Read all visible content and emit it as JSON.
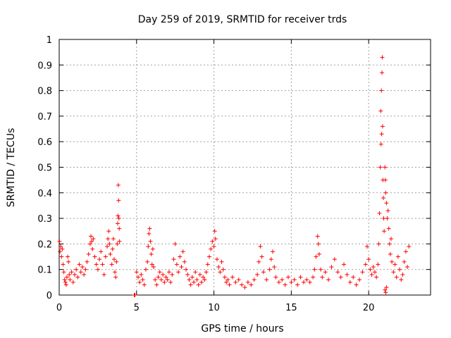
{
  "chart_data": {
    "type": "scatter",
    "title": "Day 259 of 2019, SRMTID for receiver trds",
    "xlabel": "GPS time / hours",
    "ylabel": "SRMTID / TECUs",
    "xlim": [
      0,
      24
    ],
    "ylim": [
      0,
      1
    ],
    "xticks": [
      0,
      5,
      10,
      15,
      20
    ],
    "xtick_labels": [
      "0",
      "5",
      "10",
      "15",
      "20"
    ],
    "yticks": [
      0,
      0.1,
      0.2,
      0.3,
      0.4,
      0.5,
      0.6,
      0.7,
      0.8,
      0.9,
      1
    ],
    "ytick_labels": [
      "0",
      "0.1",
      "0.2",
      "0.3",
      "0.4",
      "0.5",
      "0.6",
      "0.7",
      "0.8",
      "0.9",
      "1"
    ],
    "grid": true,
    "marker": "plus",
    "color": "#ff0000",
    "series": [
      {
        "name": "SRMTID",
        "points": [
          [
            0.02,
            0.21
          ],
          [
            0.05,
            0.17
          ],
          [
            0.1,
            0.19
          ],
          [
            0.15,
            0.15
          ],
          [
            0.2,
            0.18
          ],
          [
            0.25,
            0.12
          ],
          [
            0.3,
            0.09
          ],
          [
            0.35,
            0.06
          ],
          [
            0.4,
            0.05
          ],
          [
            0.45,
            0.04
          ],
          [
            0.5,
            0.07
          ],
          [
            0.55,
            0.15
          ],
          [
            0.6,
            0.13
          ],
          [
            0.65,
            0.08
          ],
          [
            0.7,
            0.06
          ],
          [
            0.8,
            0.09
          ],
          [
            0.9,
            0.05
          ],
          [
            1.0,
            0.08
          ],
          [
            1.1,
            0.1
          ],
          [
            1.2,
            0.07
          ],
          [
            1.3,
            0.12
          ],
          [
            1.4,
            0.09
          ],
          [
            1.5,
            0.11
          ],
          [
            1.6,
            0.08
          ],
          [
            1.7,
            0.1
          ],
          [
            1.8,
            0.13
          ],
          [
            1.9,
            0.16
          ],
          [
            2.0,
            0.2
          ],
          [
            2.05,
            0.23
          ],
          [
            2.1,
            0.21
          ],
          [
            2.15,
            0.18
          ],
          [
            2.2,
            0.22
          ],
          [
            2.3,
            0.15
          ],
          [
            2.4,
            0.12
          ],
          [
            2.5,
            0.1
          ],
          [
            2.6,
            0.14
          ],
          [
            2.7,
            0.17
          ],
          [
            2.8,
            0.12
          ],
          [
            2.9,
            0.08
          ],
          [
            3.0,
            0.15
          ],
          [
            3.1,
            0.19
          ],
          [
            3.15,
            0.22
          ],
          [
            3.2,
            0.25
          ],
          [
            3.25,
            0.2
          ],
          [
            3.3,
            0.16
          ],
          [
            3.4,
            0.12
          ],
          [
            3.45,
            0.18
          ],
          [
            3.5,
            0.22
          ],
          [
            3.55,
            0.14
          ],
          [
            3.6,
            0.09
          ],
          [
            3.65,
            0.07
          ],
          [
            3.7,
            0.13
          ],
          [
            3.75,
            0.2
          ],
          [
            3.78,
            0.28
          ],
          [
            3.8,
            0.31
          ],
          [
            3.82,
            0.43
          ],
          [
            3.84,
            0.37
          ],
          [
            3.86,
            0.3
          ],
          [
            3.88,
            0.26
          ],
          [
            3.9,
            0.21
          ],
          [
            4.85,
            0.0
          ],
          [
            4.9,
            0.0
          ],
          [
            5.0,
            0.09
          ],
          [
            5.1,
            0.07
          ],
          [
            5.2,
            0.05
          ],
          [
            5.3,
            0.08
          ],
          [
            5.4,
            0.06
          ],
          [
            5.5,
            0.04
          ],
          [
            5.6,
            0.1
          ],
          [
            5.7,
            0.13
          ],
          [
            5.75,
            0.19
          ],
          [
            5.8,
            0.24
          ],
          [
            5.85,
            0.26
          ],
          [
            5.9,
            0.21
          ],
          [
            5.95,
            0.16
          ],
          [
            6.0,
            0.12
          ],
          [
            6.05,
            0.18
          ],
          [
            6.1,
            0.11
          ],
          [
            6.2,
            0.06
          ],
          [
            6.3,
            0.04
          ],
          [
            6.4,
            0.07
          ],
          [
            6.5,
            0.09
          ],
          [
            6.6,
            0.06
          ],
          [
            6.7,
            0.08
          ],
          [
            6.8,
            0.05
          ],
          [
            6.9,
            0.07
          ],
          [
            7.0,
            0.06
          ],
          [
            7.1,
            0.09
          ],
          [
            7.2,
            0.05
          ],
          [
            7.3,
            0.08
          ],
          [
            7.4,
            0.14
          ],
          [
            7.5,
            0.2
          ],
          [
            7.6,
            0.12
          ],
          [
            7.7,
            0.09
          ],
          [
            7.8,
            0.15
          ],
          [
            7.9,
            0.11
          ],
          [
            8.0,
            0.17
          ],
          [
            8.1,
            0.13
          ],
          [
            8.2,
            0.1
          ],
          [
            8.3,
            0.08
          ],
          [
            8.4,
            0.06
          ],
          [
            8.5,
            0.04
          ],
          [
            8.6,
            0.07
          ],
          [
            8.7,
            0.05
          ],
          [
            8.8,
            0.09
          ],
          [
            8.9,
            0.06
          ],
          [
            9.0,
            0.04
          ],
          [
            9.1,
            0.08
          ],
          [
            9.2,
            0.05
          ],
          [
            9.3,
            0.07
          ],
          [
            9.4,
            0.06
          ],
          [
            9.5,
            0.09
          ],
          [
            9.6,
            0.12
          ],
          [
            9.7,
            0.15
          ],
          [
            9.8,
            0.18
          ],
          [
            9.9,
            0.21
          ],
          [
            10.0,
            0.19
          ],
          [
            10.05,
            0.25
          ],
          [
            10.1,
            0.22
          ],
          [
            10.2,
            0.14
          ],
          [
            10.3,
            0.11
          ],
          [
            10.4,
            0.09
          ],
          [
            10.5,
            0.13
          ],
          [
            10.6,
            0.1
          ],
          [
            10.7,
            0.07
          ],
          [
            10.8,
            0.05
          ],
          [
            10.9,
            0.06
          ],
          [
            11.0,
            0.04
          ],
          [
            11.2,
            0.07
          ],
          [
            11.4,
            0.05
          ],
          [
            11.6,
            0.06
          ],
          [
            11.8,
            0.04
          ],
          [
            12.0,
            0.03
          ],
          [
            12.2,
            0.05
          ],
          [
            12.4,
            0.04
          ],
          [
            12.6,
            0.06
          ],
          [
            12.8,
            0.08
          ],
          [
            12.9,
            0.13
          ],
          [
            13.0,
            0.19
          ],
          [
            13.1,
            0.15
          ],
          [
            13.2,
            0.09
          ],
          [
            13.4,
            0.06
          ],
          [
            13.6,
            0.1
          ],
          [
            13.7,
            0.14
          ],
          [
            13.8,
            0.17
          ],
          [
            13.9,
            0.11
          ],
          [
            14.0,
            0.07
          ],
          [
            14.2,
            0.05
          ],
          [
            14.4,
            0.06
          ],
          [
            14.6,
            0.04
          ],
          [
            14.8,
            0.07
          ],
          [
            15.0,
            0.05
          ],
          [
            15.2,
            0.06
          ],
          [
            15.4,
            0.04
          ],
          [
            15.6,
            0.07
          ],
          [
            15.8,
            0.05
          ],
          [
            16.0,
            0.06
          ],
          [
            16.2,
            0.05
          ],
          [
            16.4,
            0.07
          ],
          [
            16.5,
            0.1
          ],
          [
            16.6,
            0.15
          ],
          [
            16.7,
            0.23
          ],
          [
            16.75,
            0.2
          ],
          [
            16.8,
            0.16
          ],
          [
            16.9,
            0.1
          ],
          [
            17.0,
            0.07
          ],
          [
            17.2,
            0.09
          ],
          [
            17.4,
            0.06
          ],
          [
            17.6,
            0.11
          ],
          [
            17.8,
            0.14
          ],
          [
            18.0,
            0.09
          ],
          [
            18.2,
            0.07
          ],
          [
            18.4,
            0.12
          ],
          [
            18.6,
            0.08
          ],
          [
            18.8,
            0.05
          ],
          [
            19.0,
            0.07
          ],
          [
            19.2,
            0.04
          ],
          [
            19.4,
            0.06
          ],
          [
            19.6,
            0.09
          ],
          [
            19.8,
            0.12
          ],
          [
            19.9,
            0.19
          ],
          [
            20.0,
            0.14
          ],
          [
            20.1,
            0.1
          ],
          [
            20.2,
            0.08
          ],
          [
            20.3,
            0.11
          ],
          [
            20.4,
            0.09
          ],
          [
            20.5,
            0.07
          ],
          [
            20.6,
            0.12
          ],
          [
            20.65,
            0.2
          ],
          [
            20.7,
            0.32
          ],
          [
            20.75,
            0.5
          ],
          [
            20.78,
            0.72
          ],
          [
            20.8,
            0.59
          ],
          [
            20.82,
            0.8
          ],
          [
            20.84,
            0.63
          ],
          [
            20.86,
            0.87
          ],
          [
            20.88,
            0.93
          ],
          [
            20.9,
            0.66
          ],
          [
            20.92,
            0.45
          ],
          [
            20.95,
            0.38
          ],
          [
            20.97,
            0.3
          ],
          [
            21.0,
            0.25
          ],
          [
            21.05,
            0.5
          ],
          [
            21.08,
            0.45
          ],
          [
            21.1,
            0.4
          ],
          [
            21.15,
            0.36
          ],
          [
            21.2,
            0.3
          ],
          [
            21.25,
            0.33
          ],
          [
            21.3,
            0.26
          ],
          [
            21.35,
            0.2
          ],
          [
            21.4,
            0.16
          ],
          [
            21.45,
            0.22
          ],
          [
            21.5,
            0.13
          ],
          [
            21.6,
            0.09
          ],
          [
            21.7,
            0.12
          ],
          [
            21.8,
            0.07
          ],
          [
            21.9,
            0.15
          ],
          [
            22.0,
            0.1
          ],
          [
            22.1,
            0.06
          ],
          [
            22.2,
            0.08
          ],
          [
            22.3,
            0.13
          ],
          [
            22.4,
            0.17
          ],
          [
            22.5,
            0.11
          ],
          [
            22.6,
            0.19
          ],
          [
            21.05,
            0.02
          ],
          [
            21.1,
            0.01
          ],
          [
            21.15,
            0.03
          ]
        ]
      }
    ]
  }
}
